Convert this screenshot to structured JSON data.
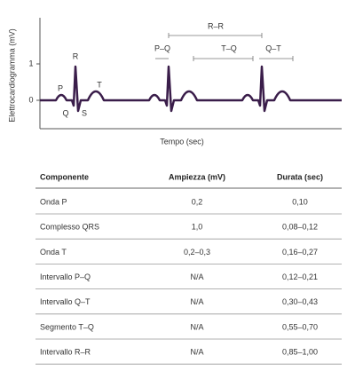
{
  "diagram": {
    "y_axis_label": "Elettrocardiogramma (mV)",
    "x_axis_label": "Tempo (sec)",
    "y_ticks": [
      "1",
      "0"
    ],
    "wave_labels": {
      "P": "P",
      "Q": "Q",
      "R": "R",
      "S": "S",
      "T": "T"
    },
    "intervals": {
      "PQ": "P–Q",
      "RR": "R–R",
      "TQ": "T–Q",
      "QT": "Q–T"
    }
  },
  "table": {
    "header": [
      "Componente",
      "Ampiezza (mV)",
      "Durata (sec)"
    ],
    "rows": [
      [
        "Onda P",
        "0,2",
        "0,10"
      ],
      [
        "Complesso QRS",
        "1,0",
        "0,08–0,12"
      ],
      [
        "Onda T",
        "0,2–0,3",
        "0,16–0,27"
      ],
      [
        "Intervallo P–Q",
        "N/A",
        "0,12–0,21"
      ],
      [
        "Intervallo Q–T",
        "N/A",
        "0,30–0,43"
      ],
      [
        "Segmento T–Q",
        "N/A",
        "0,55–0,70"
      ],
      [
        "Intervallo R–R",
        "N/A",
        "0,85–1,00"
      ]
    ]
  }
}
